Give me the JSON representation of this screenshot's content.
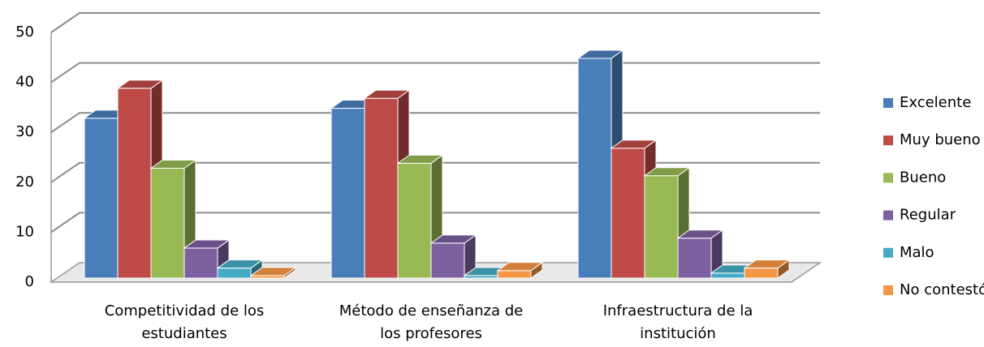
{
  "chart_data": {
    "type": "bar3d",
    "categories": [
      "Competitividad de los estudiantes",
      "Método de enseñanza de los profesores",
      "Infraestructura de la institución"
    ],
    "series": [
      {
        "name": "Excelente",
        "color": "#4a7ebb",
        "values": [
          32,
          34,
          44
        ]
      },
      {
        "name": "Muy bueno",
        "color": "#be4b48",
        "values": [
          38,
          36,
          26
        ]
      },
      {
        "name": "Bueno",
        "color": "#98b954",
        "values": [
          22,
          23,
          20.5
        ]
      },
      {
        "name": "Regular",
        "color": "#7d60a0",
        "values": [
          6,
          7,
          8
        ]
      },
      {
        "name": "Malo",
        "color": "#46aac5",
        "values": [
          2,
          0.5,
          1
        ]
      },
      {
        "name": "No contestó",
        "color": "#f79646",
        "values": [
          0.5,
          1.5,
          2
        ]
      }
    ],
    "ylim": [
      0,
      50
    ],
    "yticks": [
      0,
      10,
      20,
      30,
      40,
      50
    ],
    "grid": true,
    "legend": "right"
  }
}
